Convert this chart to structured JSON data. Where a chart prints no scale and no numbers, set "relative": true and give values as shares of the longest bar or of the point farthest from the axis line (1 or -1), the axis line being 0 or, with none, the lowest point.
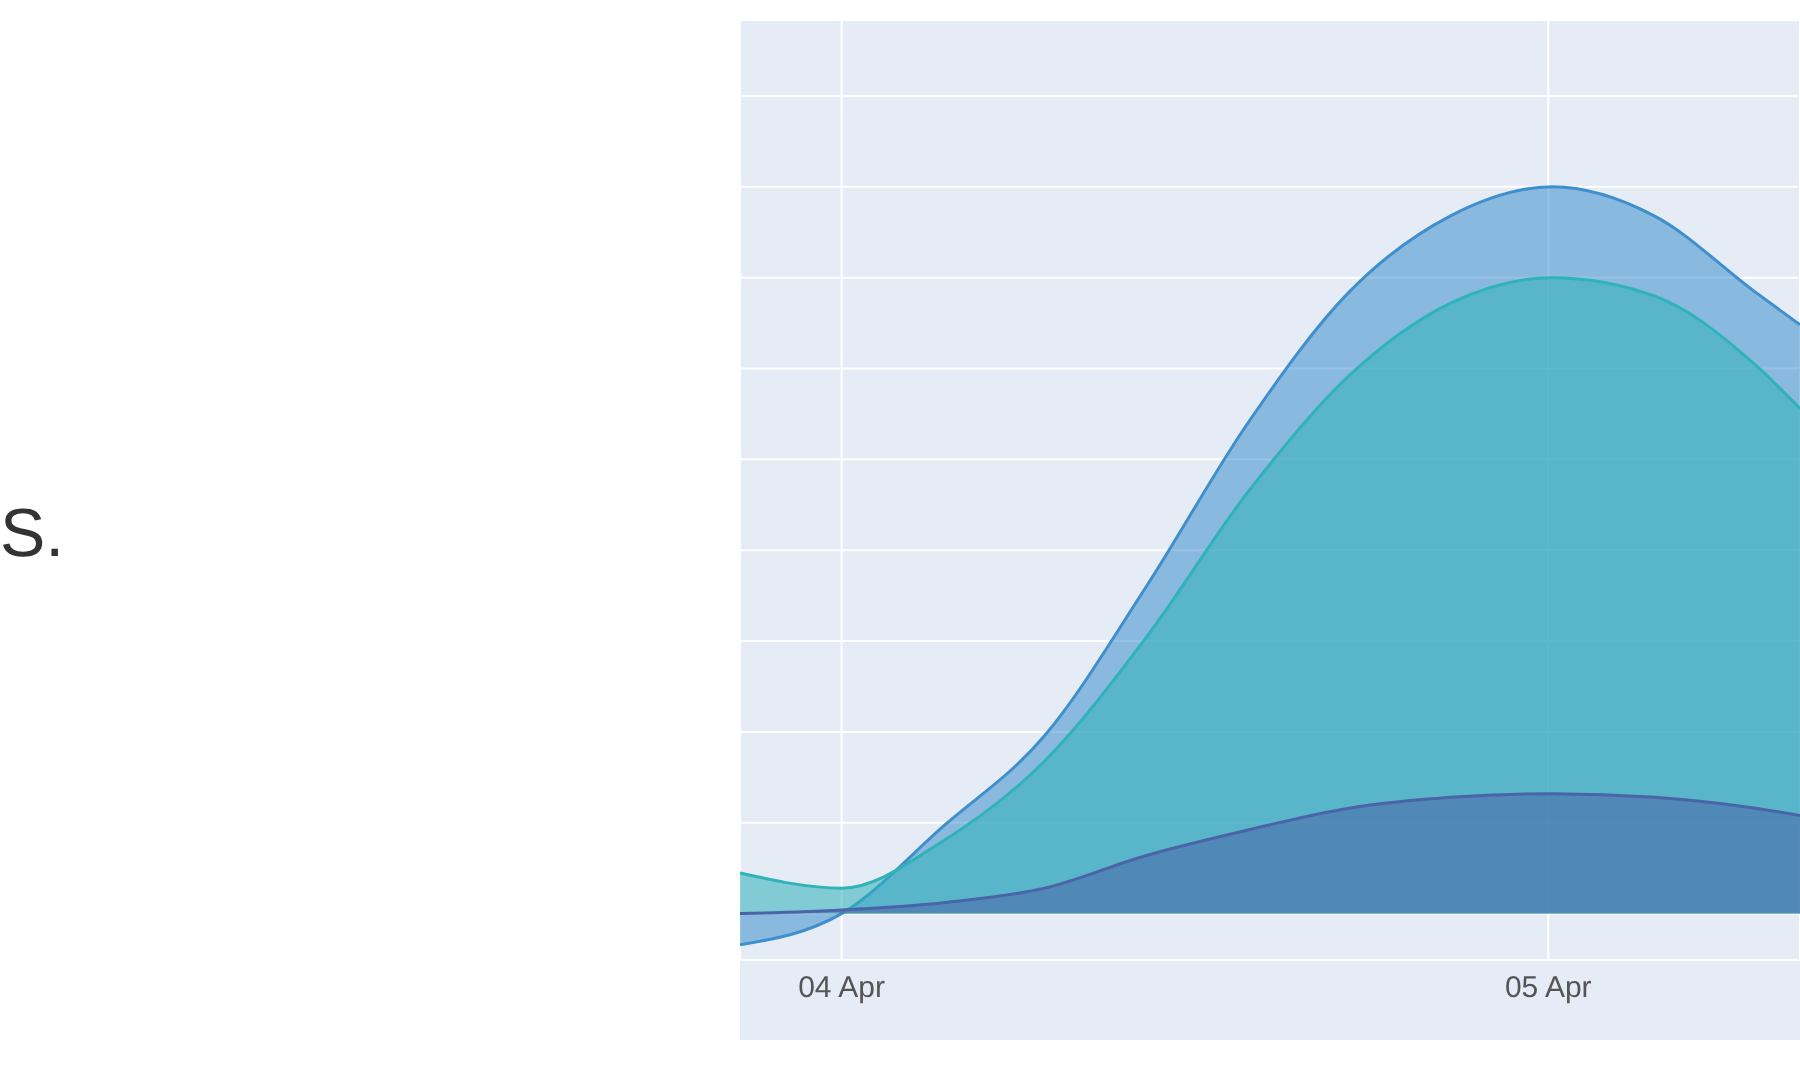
{
  "chart_data": {
    "type": "area",
    "relative": true,
    "annotations": [
      "S."
    ],
    "grid": true,
    "legend": false,
    "x": [
      "--04-03T20:33",
      "--04-04T00:00",
      "--04-04T03:27",
      "--04-04T06:54",
      "--04-04T10:21",
      "--04-04T13:48",
      "--04-04T17:14",
      "--04-04T20:41",
      "--04-05T00:08",
      "--04-05T03:36",
      "--04-05T07:02",
      "--04-05T08:33"
    ],
    "xlim": [
      "--04-03T20:33",
      "--04-05T08:33"
    ],
    "xticks": [
      {
        "value": "--04-04",
        "label": "04 Apr"
      },
      {
        "value": "--04-05",
        "label": "05 Apr"
      }
    ],
    "series": [
      {
        "color": "#3f8fcc",
        "values": [
          -0.043,
          0,
          0.12,
          0.245,
          0.45,
          0.675,
          0.855,
          0.96,
          1,
          0.96,
          0.855,
          0.81
        ]
      },
      {
        "color": "#2fb3b8",
        "values": [
          0.056,
          0.035,
          0.1,
          0.21,
          0.38,
          0.58,
          0.74,
          0.84,
          0.875,
          0.85,
          0.755,
          0.695
        ]
      },
      {
        "color": "#4a64a8",
        "values": [
          0,
          0.005,
          0.015,
          0.035,
          0.08,
          0.115,
          0.145,
          0.16,
          0.165,
          0.16,
          0.145,
          0.135
        ]
      }
    ]
  }
}
